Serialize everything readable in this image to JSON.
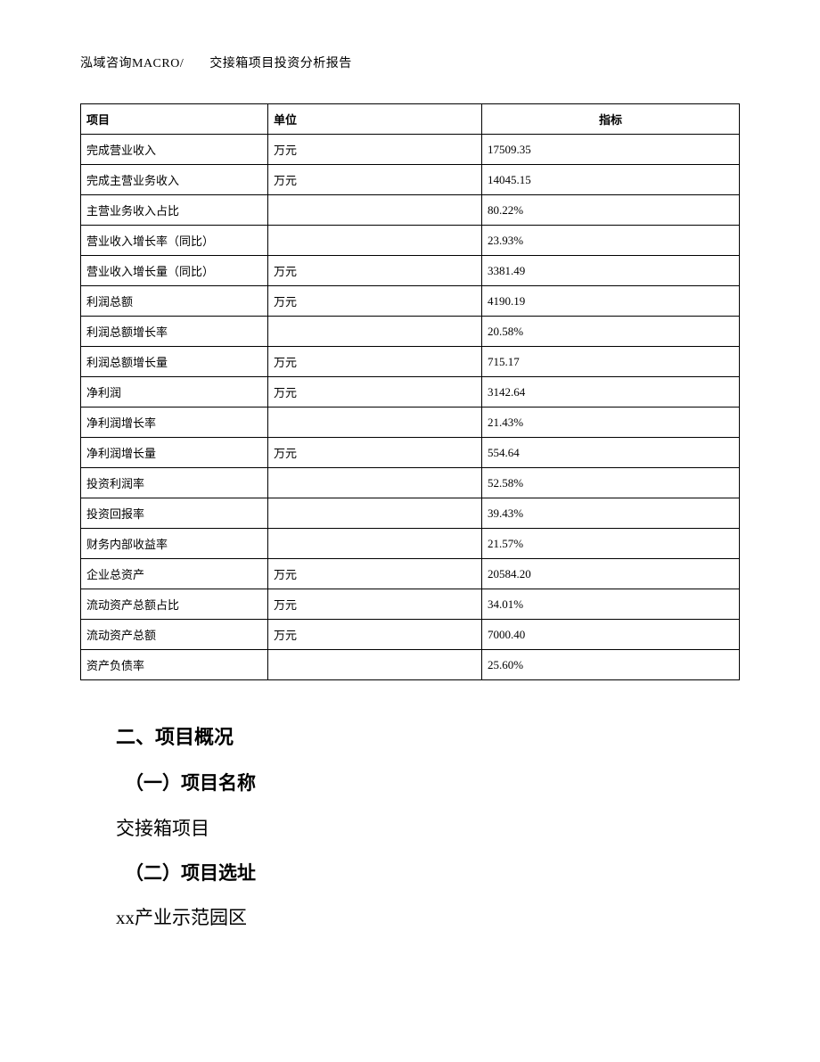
{
  "header": {
    "text": "泓域咨询MACRO/　　交接箱项目投资分析报告"
  },
  "table": {
    "columns": [
      "项目",
      "单位",
      "指标"
    ],
    "rows": [
      [
        "完成营业收入",
        "万元",
        "17509.35"
      ],
      [
        "完成主营业务收入",
        "万元",
        "14045.15"
      ],
      [
        "主营业务收入占比",
        "",
        "80.22%"
      ],
      [
        "营业收入增长率（同比）",
        "",
        "23.93%"
      ],
      [
        "营业收入增长量（同比）",
        "万元",
        "3381.49"
      ],
      [
        "利润总额",
        "万元",
        "4190.19"
      ],
      [
        "利润总额增长率",
        "",
        "20.58%"
      ],
      [
        "利润总额增长量",
        "万元",
        "715.17"
      ],
      [
        "净利润",
        "万元",
        "3142.64"
      ],
      [
        "净利润增长率",
        "",
        "21.43%"
      ],
      [
        "净利润增长量",
        "万元",
        "554.64"
      ],
      [
        "投资利润率",
        "",
        "52.58%"
      ],
      [
        "投资回报率",
        "",
        "39.43%"
      ],
      [
        "财务内部收益率",
        "",
        "21.57%"
      ],
      [
        "企业总资产",
        "万元",
        "20584.20"
      ],
      [
        "流动资产总额占比",
        "万元",
        "34.01%"
      ],
      [
        "流动资产总额",
        "万元",
        "7000.40"
      ],
      [
        "资产负债率",
        "",
        "25.60%"
      ]
    ]
  },
  "body": {
    "section_title": "二、项目概况",
    "sub1_title": "（一）项目名称",
    "sub1_text": "交接箱项目",
    "sub2_title": "（二）项目选址",
    "sub2_text": "xx产业示范园区"
  }
}
